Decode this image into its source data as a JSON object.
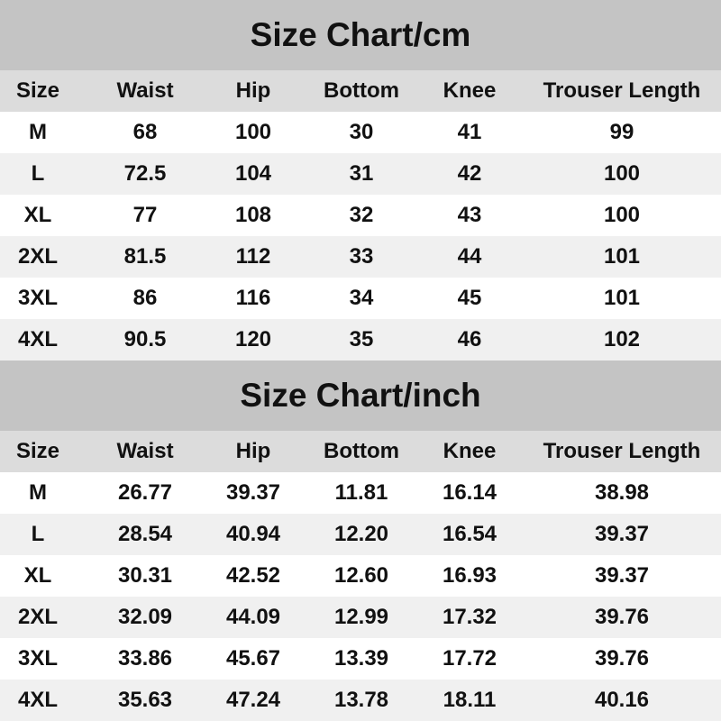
{
  "tables": [
    {
      "title": "Size Chart/cm",
      "headers": [
        "Size",
        "Waist",
        "Hip",
        "Bottom",
        "Knee",
        "Trouser Length"
      ],
      "rows": [
        [
          "M",
          "68",
          "100",
          "30",
          "41",
          "99"
        ],
        [
          "L",
          "72.5",
          "104",
          "31",
          "42",
          "100"
        ],
        [
          "XL",
          "77",
          "108",
          "32",
          "43",
          "100"
        ],
        [
          "2XL",
          "81.5",
          "112",
          "33",
          "44",
          "101"
        ],
        [
          "3XL",
          "86",
          "116",
          "34",
          "45",
          "101"
        ],
        [
          "4XL",
          "90.5",
          "120",
          "35",
          "46",
          "102"
        ]
      ]
    },
    {
      "title": "Size Chart/inch",
      "headers": [
        "Size",
        "Waist",
        "Hip",
        "Bottom",
        "Knee",
        "Trouser Length"
      ],
      "rows": [
        [
          "M",
          "26.77",
          "39.37",
          "11.81",
          "16.14",
          "38.98"
        ],
        [
          "L",
          "28.54",
          "40.94",
          "12.20",
          "16.54",
          "39.37"
        ],
        [
          "XL",
          "30.31",
          "42.52",
          "12.60",
          "16.93",
          "39.37"
        ],
        [
          "2XL",
          "32.09",
          "44.09",
          "12.99",
          "17.32",
          "39.76"
        ],
        [
          "3XL",
          "33.86",
          "45.67",
          "13.39",
          "17.72",
          "39.76"
        ],
        [
          "4XL",
          "35.63",
          "47.24",
          "13.78",
          "18.11",
          "40.16"
        ]
      ]
    }
  ],
  "colors": {
    "title_band": "#c4c4c4",
    "header_row": "#dcdcdc",
    "alt_row": "#f0f0f0",
    "text": "#111111"
  }
}
